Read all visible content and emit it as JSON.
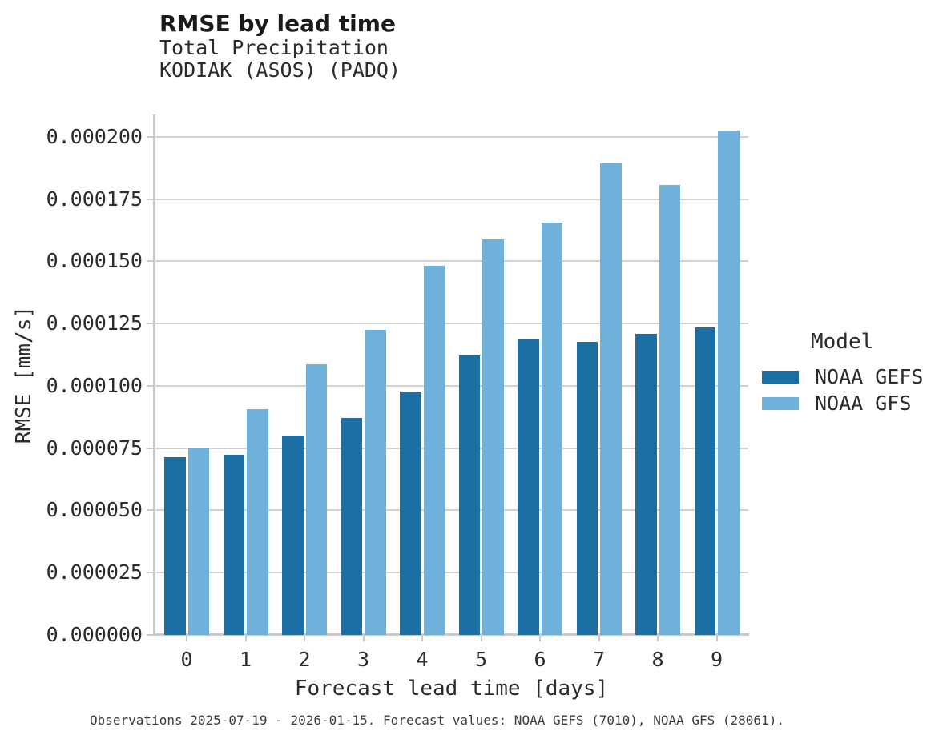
{
  "header": {
    "title": "RMSE by lead time",
    "subtitle_line1": "Total Precipitation",
    "subtitle_line2": "KODIAK (ASOS) (PADQ)"
  },
  "chart_data": {
    "type": "bar",
    "title": "RMSE by lead time",
    "subtitle": [
      "Total Precipitation",
      "KODIAK (ASOS) (PADQ)"
    ],
    "categories": [
      "0",
      "1",
      "2",
      "3",
      "4",
      "5",
      "6",
      "7",
      "8",
      "9"
    ],
    "series": [
      {
        "name": "NOAA GEFS",
        "color": "#1d6fa3",
        "values": [
          7.15e-05,
          7.25e-05,
          8.02e-05,
          8.7e-05,
          9.79e-05,
          0.0001123,
          0.0001188,
          0.0001178,
          0.0001209,
          0.0001236
        ]
      },
      {
        "name": "NOAA GFS",
        "color": "#6fb1d9",
        "values": [
          7.5e-05,
          9.08e-05,
          0.0001086,
          0.0001226,
          0.0001483,
          0.0001588,
          0.0001655,
          0.0001894,
          0.0001808,
          0.0002027
        ]
      }
    ],
    "xlabel": "Forecast lead time [days]",
    "ylabel": "RMSE [mm/s]",
    "ylim": [
      0,
      0.000209
    ],
    "yticks": [
      0,
      2.5e-05,
      5e-05,
      7.5e-05,
      0.0001,
      0.000125,
      0.00015,
      0.000175,
      0.0002
    ],
    "ytick_labels": [
      "0.000000",
      "0.000025",
      "0.000050",
      "0.000075",
      "0.000100",
      "0.000125",
      "0.000150",
      "0.000175",
      "0.000200"
    ],
    "grid": "horizontal",
    "legend_title": "Model",
    "legend_position": "right"
  },
  "footer": {
    "text": "Observations 2025-07-19 - 2026-01-15. Forecast values: NOAA GEFS (7010), NOAA GFS (28061)."
  }
}
